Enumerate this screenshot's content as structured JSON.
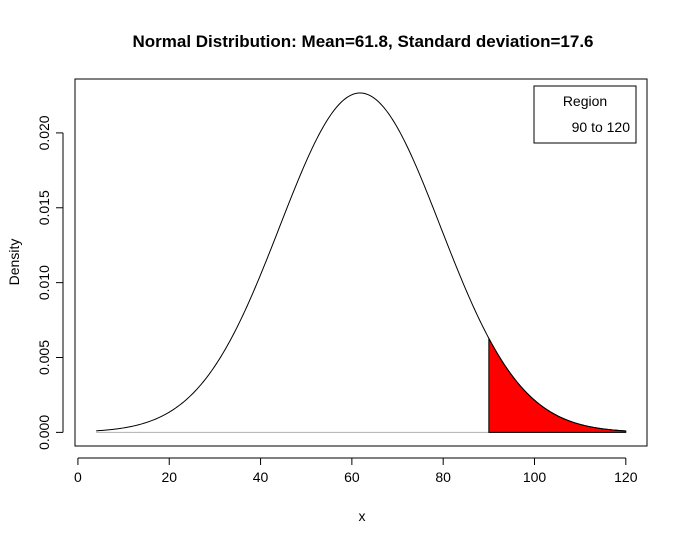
{
  "chart_data": {
    "type": "area",
    "title": "Normal Distribution:  Mean=61.8, Standard deviation=17.6",
    "xlabel": "x",
    "ylabel": "Density",
    "mean": 61.8,
    "sd": 17.6,
    "x_range": [
      4,
      120
    ],
    "xlim": [
      -0.64,
      124.64
    ],
    "ylim": [
      -0.00091,
      0.0236
    ],
    "x_ticks": [
      0,
      20,
      40,
      60,
      80,
      100,
      120
    ],
    "x_tick_labels": [
      "0",
      "20",
      "40",
      "60",
      "80",
      "100",
      "120"
    ],
    "y_ticks": [
      0,
      0.005,
      0.01,
      0.015,
      0.02
    ],
    "y_tick_labels": [
      "0.000",
      "0.005",
      "0.010",
      "0.015",
      "0.020"
    ],
    "shaded_region": {
      "from": 90,
      "to": 120,
      "color": "#ff0000"
    },
    "grid": false,
    "legend": {
      "position": "top-right",
      "title": "Region",
      "entries": [
        "90 to 120"
      ]
    },
    "colors": {
      "curve": "#000000",
      "fill": "#ff0000",
      "baseline": "#b0b0b0"
    }
  }
}
